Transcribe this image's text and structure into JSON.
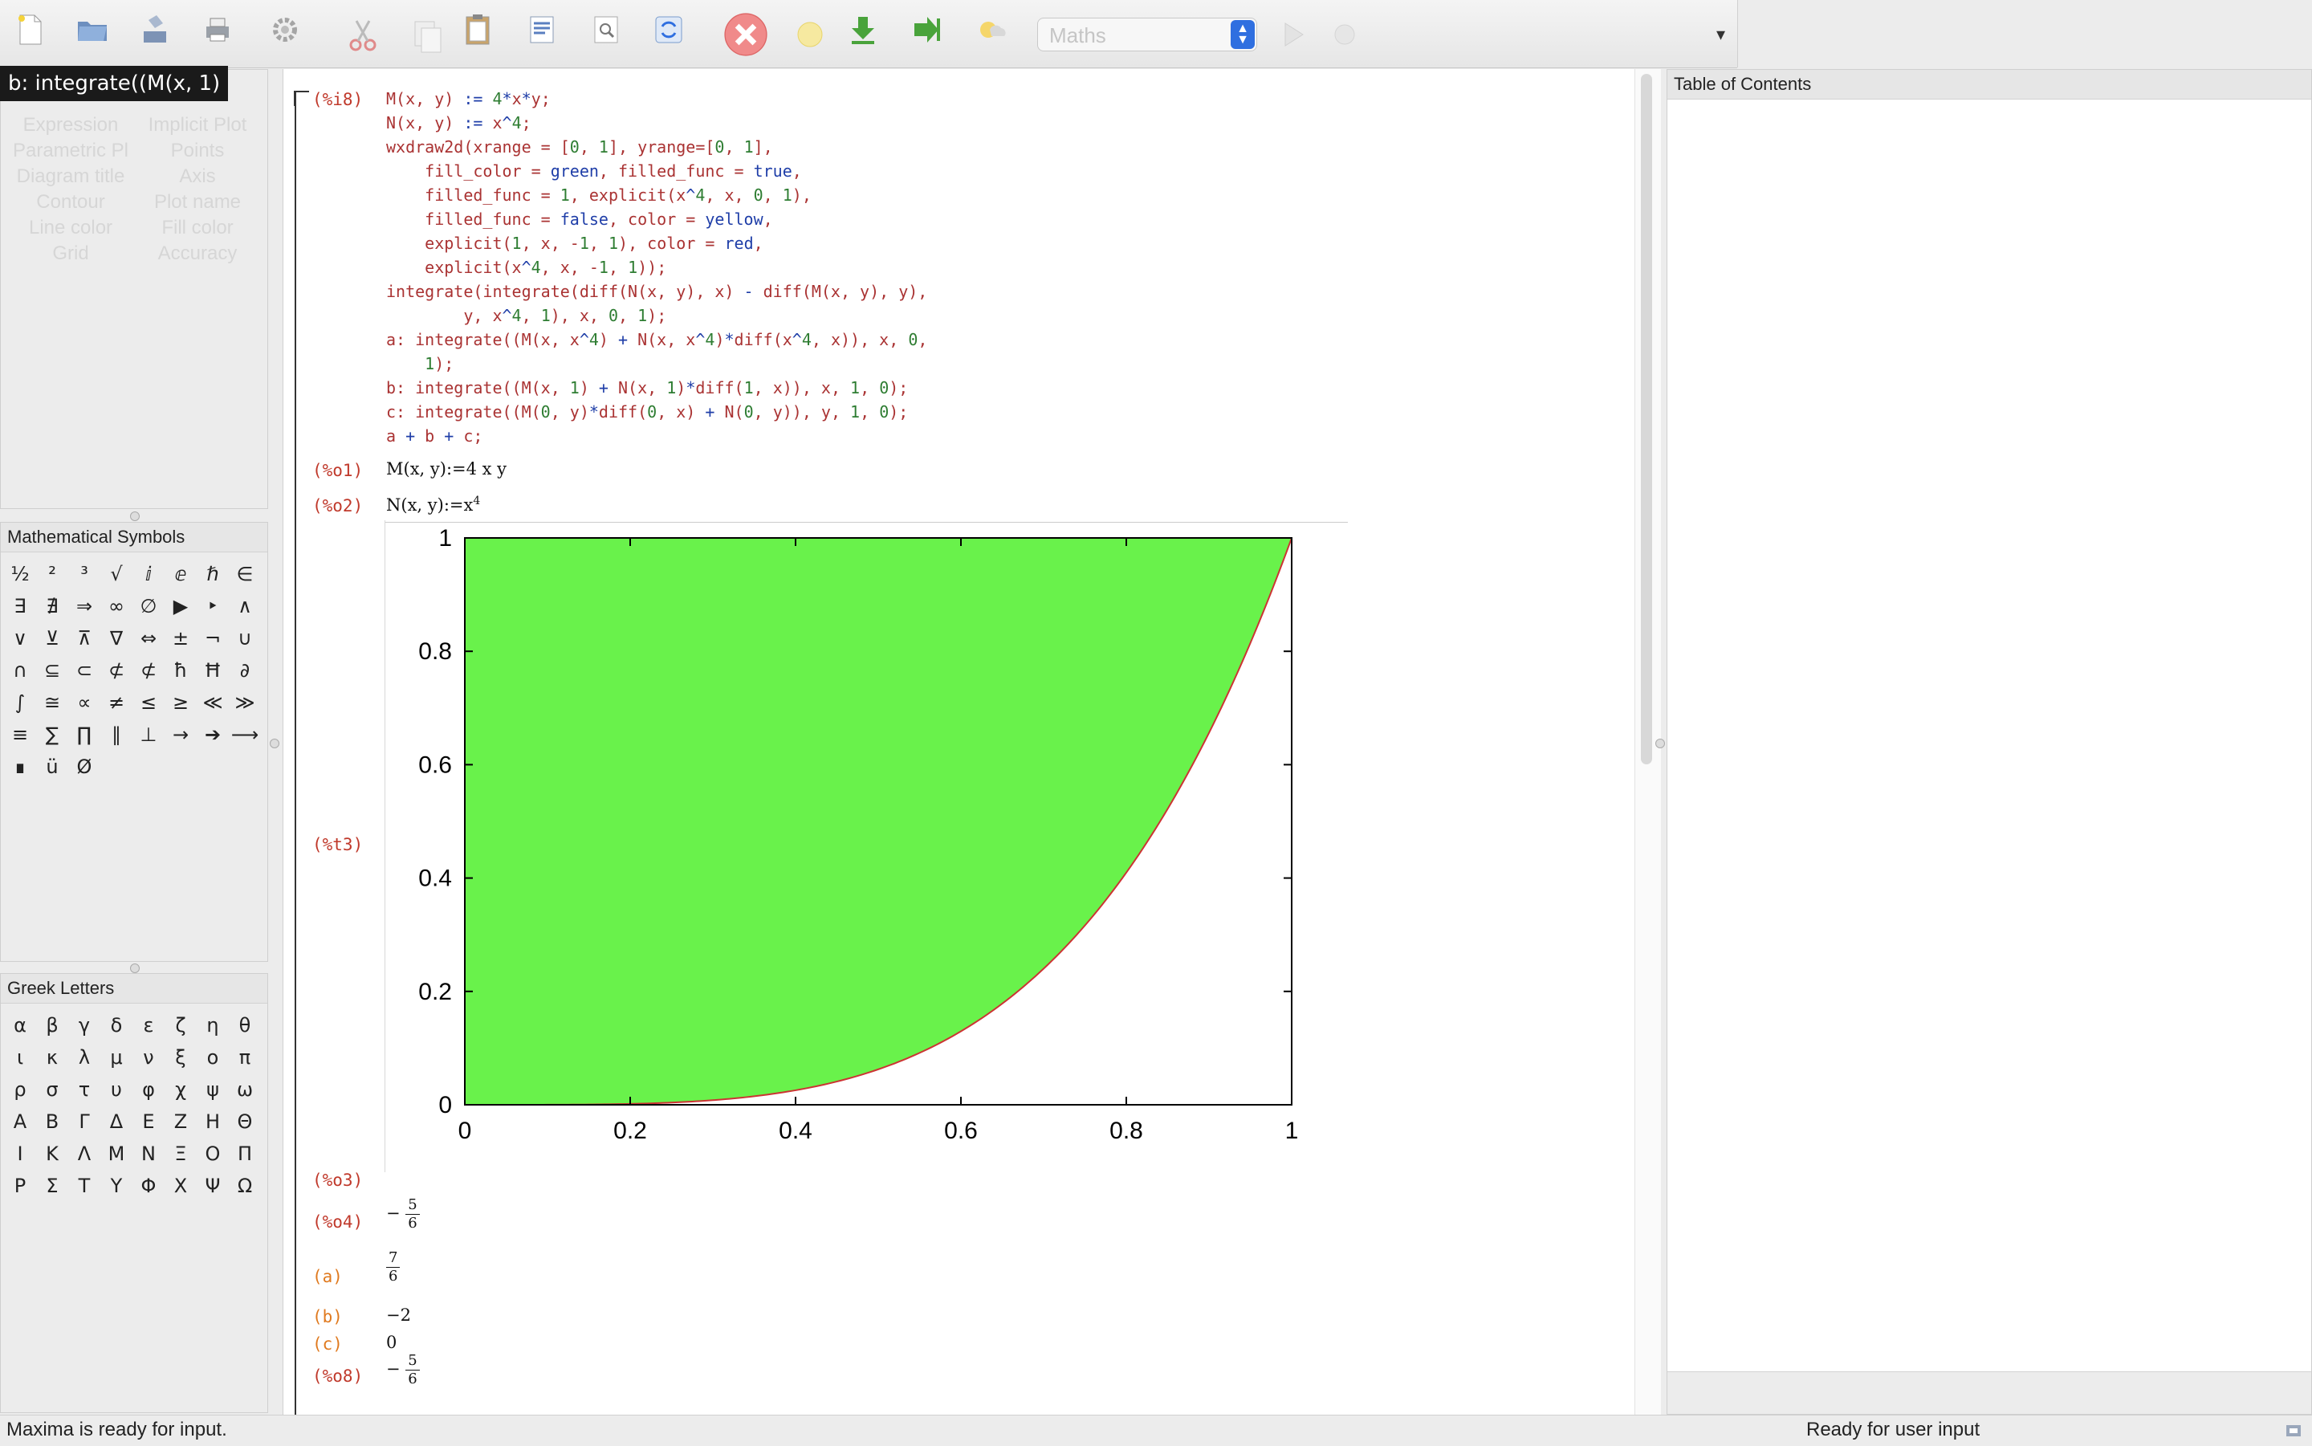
{
  "toolbar": {
    "icons": [
      "new-file-icon",
      "open-icon",
      "save-icon",
      "print-icon",
      "settings-icon",
      "cut-icon",
      "copy-icon",
      "paste-icon",
      "select-all-icon",
      "find-icon",
      "refresh-icon",
      "interrupt-icon",
      "follow-icon",
      "load-icon",
      "skip-icon",
      "evaluate-icon"
    ],
    "mode_value": "Maths",
    "overflow_label": "▾"
  },
  "draw_panel": {
    "tooltip": "b: integrate((M(x, 1)",
    "items": [
      "Expression",
      "Implicit Plot",
      "Parametric Pl",
      "Points",
      "Diagram title",
      "Axis",
      "Contour",
      "Plot name",
      "Line color",
      "Fill color",
      "Grid",
      "Accuracy"
    ]
  },
  "symbols_panel": {
    "title": "Mathematical Symbols",
    "symbols": [
      "½",
      "²",
      "³",
      "√",
      "ⅈ",
      "ⅇ",
      "ℏ",
      "∈",
      "∃",
      "∄",
      "⇒",
      "∞",
      "∅",
      "▶",
      "‣",
      "∧",
      "∨",
      "⊻",
      "⊼",
      "∇",
      "⇔",
      "±",
      "¬",
      "∪",
      "∩",
      "⊆",
      "⊂",
      "⊄",
      "⊄",
      "ħ",
      "Ħ",
      "∂",
      "∫",
      "≅",
      "∝",
      "≠",
      "≤",
      "≥",
      "≪",
      "≫",
      "≡",
      "∑",
      "∏",
      "∥",
      "⊥",
      "→",
      "➔",
      "⟶",
      "∎",
      "ü",
      "Ø"
    ]
  },
  "greek_panel": {
    "title": "Greek Letters",
    "letters": [
      "α",
      "β",
      "γ",
      "δ",
      "ε",
      "ζ",
      "η",
      "θ",
      "ι",
      "κ",
      "λ",
      "μ",
      "ν",
      "ξ",
      "ο",
      "π",
      "ρ",
      "σ",
      "τ",
      "υ",
      "φ",
      "χ",
      "ψ",
      "ω",
      "Α",
      "Β",
      "Γ",
      "Δ",
      "Ε",
      "Ζ",
      "Η",
      "Θ",
      "Ι",
      "Κ",
      "Λ",
      "Μ",
      "Ν",
      "Ξ",
      "Ο",
      "Π",
      "Ρ",
      "Σ",
      "Τ",
      "Υ",
      "Φ",
      "Χ",
      "Ψ",
      "Ω"
    ]
  },
  "worksheet": {
    "input_label": "(%i8)",
    "code_lines": [
      "M(x, y) := 4*x*y;",
      "N(x, y) := x^4;",
      "wxdraw2d(xrange = [0, 1], yrange=[0, 1],",
      "    fill_color = green, filled_func = true,",
      "    filled_func = 1, explicit(x^4, x, 0, 1),",
      "    filled_func = false, color = yellow,",
      "    explicit(1, x, -1, 1), color = red,",
      "    explicit(x^4, x, -1, 1));",
      "integrate(integrate(diff(N(x, y), x) - diff(M(x, y), y),",
      "        y, x^4, 1), x, 0, 1);",
      "a: integrate((M(x, x^4) + N(x, x^4)*diff(x^4, x)), x, 0,",
      "    1);",
      "b: integrate((M(x, 1) + N(x, 1)*diff(1, x)), x, 1, 0);",
      "c: integrate((M(0, y)*diff(0, x) + N(0, y)), y, 1, 0);",
      "a + b + c;"
    ],
    "o1_label": "(%o1)",
    "o1_text": "M(x, y):=4 x y",
    "o2_label": "(%o2)",
    "o2_text": "N(x, y):=x",
    "o2_exp": "4",
    "t3_label": "(%t3)",
    "o3_label": "(%o3)",
    "o4_label": "(%o4)",
    "o4_sign": "−",
    "o4_num": "5",
    "o4_den": "6",
    "a_label": "(a)",
    "a_num": "7",
    "a_den": "6",
    "b_label": "(b)",
    "b_value": "−2",
    "c_label": "(c)",
    "c_value": "0",
    "o8_label": "(%o8)",
    "o8_sign": "−",
    "o8_num": "5",
    "o8_den": "6"
  },
  "chart_data": {
    "type": "area",
    "xlim": [
      0,
      1
    ],
    "ylim": [
      0,
      1
    ],
    "xticks": [
      "0",
      "0.2",
      "0.4",
      "0.6",
      "0.8",
      "1"
    ],
    "yticks": [
      "0",
      "0.2",
      "0.4",
      "0.6",
      "0.8",
      "1"
    ],
    "series": [
      {
        "function": "x^4",
        "filled_above_to": 1,
        "fill_color": "#69f24b"
      },
      {
        "function": "1",
        "color": "#f5e400"
      },
      {
        "function": "x^4",
        "color": "#cc3333"
      }
    ],
    "curve_x": [
      0,
      0.1,
      0.2,
      0.3,
      0.4,
      0.5,
      0.6,
      0.7,
      0.8,
      0.9,
      1.0
    ],
    "curve_y": [
      0,
      0.0001,
      0.0016,
      0.0081,
      0.0256,
      0.0625,
      0.1296,
      0.2401,
      0.4096,
      0.6561,
      1.0
    ],
    "grid": false
  },
  "toc": {
    "title": "Table of Contents"
  },
  "status": {
    "left": "Maxima is ready for input.",
    "right": "Ready for user input"
  }
}
